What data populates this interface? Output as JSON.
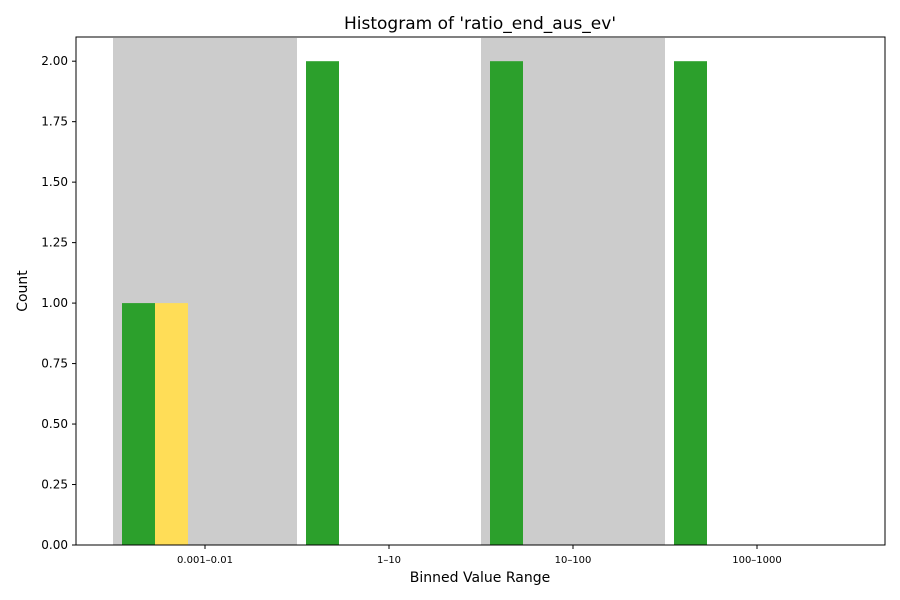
{
  "chart_data": {
    "type": "bar",
    "title": "Histogram of 'ratio_end_aus_ev'",
    "xlabel": "Binned Value Range",
    "ylabel": "Count",
    "categories": [
      "0.001–0.01",
      "1–10",
      "10–100",
      "100–1000"
    ],
    "series": [
      {
        "values": [
          1,
          2,
          2,
          2
        ],
        "color": "#2ca02c"
      },
      {
        "values": [
          1,
          0,
          0,
          0
        ],
        "color": "#ffdd57"
      }
    ],
    "highlighted_bins": [
      "0.001–0.01",
      "10–100"
    ],
    "highlight_color": "#cccccc",
    "ylim": [
      0,
      2.1
    ],
    "yticks": [
      "0.00",
      "0.25",
      "0.50",
      "0.75",
      "1.00",
      "1.25",
      "1.50",
      "1.75",
      "2.00"
    ],
    "grid": false,
    "legend": "none"
  }
}
